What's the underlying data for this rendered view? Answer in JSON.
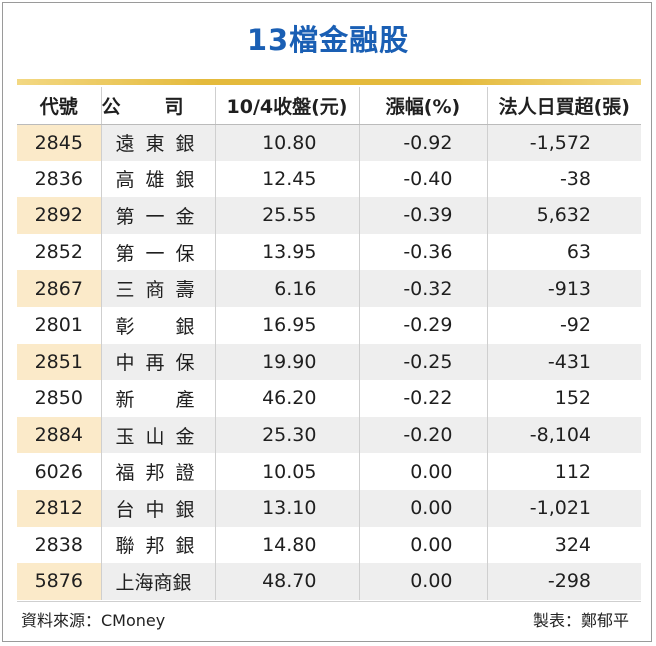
{
  "title": "13檔金融股",
  "headers": {
    "code": "代號",
    "name_a": "公",
    "name_b": "司",
    "close": "10/4收盤(元)",
    "change": "漲幅(%)",
    "net_buy": "法人日買超(張)"
  },
  "rows": [
    {
      "code": "2845",
      "name": "遠東銀",
      "close": "10.80",
      "change": "-0.92",
      "net_buy": "-1,572"
    },
    {
      "code": "2836",
      "name": "高雄銀",
      "close": "12.45",
      "change": "-0.40",
      "net_buy": "-38"
    },
    {
      "code": "2892",
      "name": "第一金",
      "close": "25.55",
      "change": "-0.39",
      "net_buy": "5,632"
    },
    {
      "code": "2852",
      "name": "第一保",
      "close": "13.95",
      "change": "-0.36",
      "net_buy": "63"
    },
    {
      "code": "2867",
      "name": "三商壽",
      "close": "6.16",
      "change": "-0.32",
      "net_buy": "-913"
    },
    {
      "code": "2801",
      "name": "彰　銀",
      "close": "16.95",
      "change": "-0.29",
      "net_buy": "-92"
    },
    {
      "code": "2851",
      "name": "中再保",
      "close": "19.90",
      "change": "-0.25",
      "net_buy": "-431"
    },
    {
      "code": "2850",
      "name": "新　產",
      "close": "46.20",
      "change": "-0.22",
      "net_buy": "152"
    },
    {
      "code": "2884",
      "name": "玉山金",
      "close": "25.30",
      "change": "-0.20",
      "net_buy": "-8,104"
    },
    {
      "code": "6026",
      "name": "福邦證",
      "close": "10.05",
      "change": "0.00",
      "net_buy": "112"
    },
    {
      "code": "2812",
      "name": "台中銀",
      "close": "13.10",
      "change": "0.00",
      "net_buy": "-1,021"
    },
    {
      "code": "2838",
      "name": "聯邦銀",
      "close": "14.80",
      "change": "0.00",
      "net_buy": "324"
    },
    {
      "code": "5876",
      "name": "上海商銀",
      "close": "48.70",
      "change": "0.00",
      "net_buy": "-298"
    }
  ],
  "footer": {
    "source": "資料來源：CMoney",
    "maker": "製表：鄭郁平"
  },
  "colors": {
    "title": "#1a5fb4",
    "accent_bar": "#e4ba3c",
    "code_highlight": "#fbeac9",
    "stripe": "#eeeeee"
  }
}
